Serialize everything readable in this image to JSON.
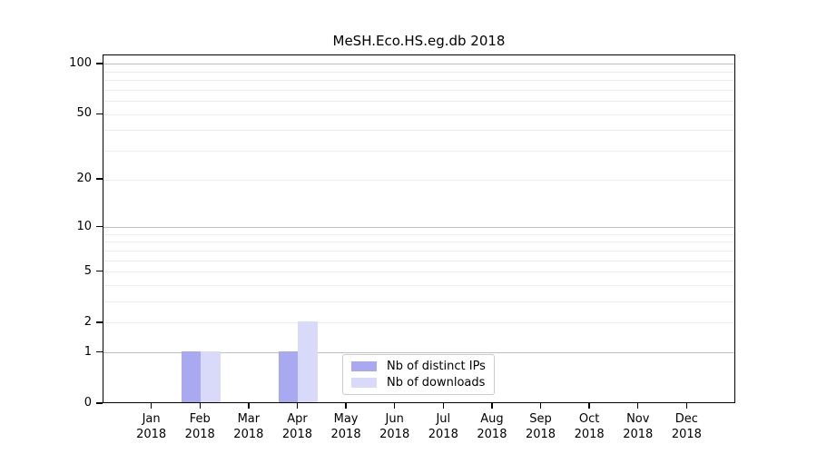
{
  "chart_data": {
    "type": "bar",
    "title": "MeSH.Eco.HS.eg.db 2018",
    "categories": [
      "Jan",
      "Feb",
      "Mar",
      "Apr",
      "May",
      "Jun",
      "Jul",
      "Aug",
      "Sep",
      "Oct",
      "Nov",
      "Dec"
    ],
    "x_tick_labels": [
      [
        "Jan",
        "2018"
      ],
      [
        "Feb",
        "2018"
      ],
      [
        "Mar",
        "2018"
      ],
      [
        "Apr",
        "2018"
      ],
      [
        "May",
        "2018"
      ],
      [
        "Jun",
        "2018"
      ],
      [
        "Jul",
        "2018"
      ],
      [
        "Aug",
        "2018"
      ],
      [
        "Sep",
        "2018"
      ],
      [
        "Oct",
        "2018"
      ],
      [
        "Nov",
        "2018"
      ],
      [
        "Dec",
        "2018"
      ]
    ],
    "series": [
      {
        "name": "Nb of distinct IPs",
        "color": "#a9a9f2",
        "values": [
          0,
          1,
          0,
          1,
          0,
          0,
          0,
          0,
          0,
          0,
          0,
          0
        ]
      },
      {
        "name": "Nb of downloads",
        "color": "#d9d9f9",
        "values": [
          0,
          1,
          0,
          2,
          0,
          0,
          0,
          0,
          0,
          0,
          0,
          0
        ]
      }
    ],
    "y_scale": "log1p",
    "ylim": [
      0,
      113
    ],
    "y_ticks": [
      100,
      50,
      20,
      10,
      5,
      2,
      1,
      0
    ],
    "y_minor_gridlines": [
      1,
      2,
      3,
      4,
      5,
      6,
      7,
      8,
      9,
      10,
      20,
      30,
      40,
      50,
      60,
      70,
      80,
      90,
      100
    ],
    "y_major_gridlines": [
      1,
      10,
      100
    ],
    "grid": true,
    "legend": {
      "position": "lower-center",
      "border_color": "#cccccc"
    },
    "colors": {
      "axis": "#000000",
      "grid_minor": "#ececec",
      "grid_major": "#c0c0c0"
    }
  }
}
